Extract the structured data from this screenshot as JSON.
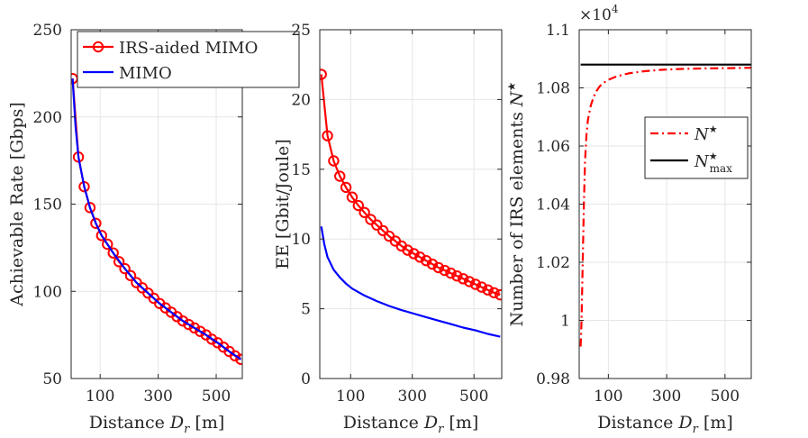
{
  "chart_data": [
    {
      "type": "line",
      "xlabel": "Distance",
      "xlabel_symbol": "D",
      "xlabel_sub": "r",
      "xlabel_unit": "[m]",
      "ylabel": "Achievable Rate [Gbps]",
      "xlim": [
        0,
        590
      ],
      "ylim": [
        50,
        250
      ],
      "xticks": [
        100,
        300,
        500
      ],
      "yticks": [
        50,
        100,
        150,
        200,
        250
      ],
      "legend": {
        "placement": "top-right",
        "entries": [
          "IRS-aided MIMO",
          "MIMO"
        ]
      },
      "series": [
        {
          "name": "IRS-aided MIMO",
          "color": "#ff0000",
          "style": "solid-circle",
          "x": [
            5,
            25,
            45,
            65,
            85,
            105,
            125,
            145,
            165,
            185,
            205,
            225,
            245,
            265,
            285,
            305,
            325,
            345,
            365,
            385,
            405,
            425,
            445,
            465,
            485,
            505,
            525,
            545,
            565,
            585
          ],
          "y": [
            222,
            177,
            160,
            148,
            139,
            132,
            127,
            122,
            117,
            113,
            109,
            105,
            102,
            99,
            96,
            93,
            90.5,
            88,
            85.5,
            83,
            81,
            79,
            77,
            75,
            72.5,
            70.5,
            68,
            65.5,
            63,
            61
          ]
        },
        {
          "name": "MIMO",
          "color": "#0000ff",
          "style": "solid",
          "x": [
            5,
            15,
            25,
            45,
            65,
            85,
            105,
            145,
            185,
            225,
            265,
            305,
            345,
            385,
            425,
            465,
            505,
            545,
            585
          ],
          "y": [
            222,
            195,
            177,
            160,
            148,
            139,
            132,
            122,
            113,
            105,
            99,
            93,
            88,
            83,
            79,
            75,
            70.5,
            65.5,
            61
          ]
        }
      ]
    },
    {
      "type": "line",
      "xlabel": "Distance",
      "xlabel_symbol": "D",
      "xlabel_sub": "r",
      "xlabel_unit": "[m]",
      "ylabel": "EE [Gbit/Joule]",
      "xlim": [
        0,
        590
      ],
      "ylim": [
        0,
        25
      ],
      "xticks": [
        100,
        300,
        500
      ],
      "yticks": [
        0,
        5,
        10,
        15,
        20,
        25
      ],
      "series": [
        {
          "name": "IRS-aided MIMO",
          "color": "#ff0000",
          "style": "solid-circle",
          "x": [
            5,
            25,
            45,
            65,
            85,
            105,
            125,
            145,
            165,
            185,
            205,
            225,
            245,
            265,
            285,
            305,
            325,
            345,
            365,
            385,
            405,
            425,
            445,
            465,
            485,
            505,
            525,
            545,
            565,
            585
          ],
          "y": [
            21.8,
            17.4,
            15.6,
            14.5,
            13.7,
            13.0,
            12.4,
            11.9,
            11.4,
            11.0,
            10.6,
            10.2,
            9.85,
            9.5,
            9.2,
            8.95,
            8.7,
            8.45,
            8.2,
            7.95,
            7.75,
            7.55,
            7.35,
            7.15,
            6.95,
            6.75,
            6.55,
            6.35,
            6.15,
            6.0
          ]
        },
        {
          "name": "MIMO",
          "color": "#0000ff",
          "style": "solid",
          "x": [
            5,
            15,
            25,
            45,
            65,
            85,
            105,
            145,
            185,
            225,
            265,
            305,
            345,
            385,
            425,
            465,
            505,
            545,
            585
          ],
          "y": [
            10.9,
            9.6,
            8.7,
            7.8,
            7.25,
            6.8,
            6.45,
            5.95,
            5.55,
            5.2,
            4.9,
            4.65,
            4.4,
            4.15,
            3.9,
            3.65,
            3.45,
            3.2,
            3.0
          ]
        }
      ]
    },
    {
      "type": "line",
      "xlabel": "Distance",
      "xlabel_symbol": "D",
      "xlabel_sub": "r",
      "xlabel_unit": "[m]",
      "ylabel": "Number of IRS elements N★",
      "ylabel_text": "Number of IRS elements",
      "ylabel_symbol": "N",
      "xlim": [
        0,
        590
      ],
      "ylim": [
        0.98,
        1.1
      ],
      "xticks": [
        100,
        300,
        500
      ],
      "yticks": [
        0.98,
        1,
        1.02,
        1.04,
        1.06,
        1.08,
        1.1
      ],
      "ytick_labels": [
        "0.98",
        "1",
        "1.02",
        "1.04",
        "1.06",
        "1.08",
        "1.1"
      ],
      "y_exponent_base": "×10",
      "y_exponent_power": "4",
      "legend": {
        "placement": "upper-right-center",
        "entries": [
          "N★",
          "N★max"
        ]
      },
      "legend_symbol": "N",
      "legend_sub": "max",
      "series": [
        {
          "name": "N★",
          "color": "#ff0000",
          "style": "dash-dot",
          "x": [
            5,
            8,
            12,
            16,
            20,
            25,
            30,
            40,
            50,
            60,
            70,
            80,
            100,
            130,
            170,
            220,
            280,
            350,
            430,
            510,
            590
          ],
          "y": [
            0.991,
            1.0,
            1.02,
            1.04,
            1.055,
            1.064,
            1.069,
            1.074,
            1.077,
            1.079,
            1.0805,
            1.0815,
            1.0828,
            1.084,
            1.085,
            1.0857,
            1.0862,
            1.0865,
            1.0867,
            1.0868,
            1.0869
          ]
        },
        {
          "name": "N★max",
          "color": "#000000",
          "style": "solid",
          "x": [
            5,
            590
          ],
          "y": [
            1.088,
            1.088
          ]
        }
      ]
    }
  ]
}
